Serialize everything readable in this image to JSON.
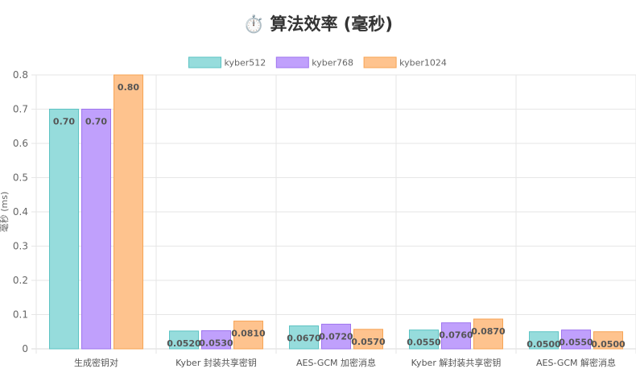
{
  "chart_data": {
    "type": "bar",
    "title": "⏱️ 算法效率 (毫秒)",
    "ylabel": "毫秒 (ms)",
    "xlabel": "",
    "ylim": [
      0,
      0.8
    ],
    "yticks": [
      "0",
      "0.1",
      "0.2",
      "0.3",
      "0.4",
      "0.5",
      "0.6",
      "0.7",
      "0.8"
    ],
    "grid": true,
    "legend_position": "top-center",
    "categories": [
      "生成密钥对",
      "Kyber 封装共享密钥",
      "AES-GCM 加密消息",
      "Kyber 解封装共享密钥",
      "AES-GCM 解密消息"
    ],
    "series": [
      {
        "name": "kyber512",
        "fill": "#96dcdc",
        "stroke": "#5cc3c3",
        "values": [
          0.7,
          0.052,
          0.067,
          0.055,
          0.05
        ],
        "labels": [
          "0.70",
          "0.0520",
          "0.0670",
          "0.0550",
          "0.0500"
        ]
      },
      {
        "name": "kyber768",
        "fill": "#c0a0fc",
        "stroke": "#9e74ee",
        "values": [
          0.7,
          0.053,
          0.072,
          0.076,
          0.055
        ],
        "labels": [
          "0.70",
          "0.0530",
          "0.0720",
          "0.0760",
          "0.0550"
        ]
      },
      {
        "name": "kyber1024",
        "fill": "#fec38e",
        "stroke": "#f7a454",
        "values": [
          0.8,
          0.081,
          0.057,
          0.087,
          0.05
        ],
        "labels": [
          "0.80",
          "0.0810",
          "0.0570",
          "0.0870",
          "0.0500"
        ]
      }
    ]
  }
}
